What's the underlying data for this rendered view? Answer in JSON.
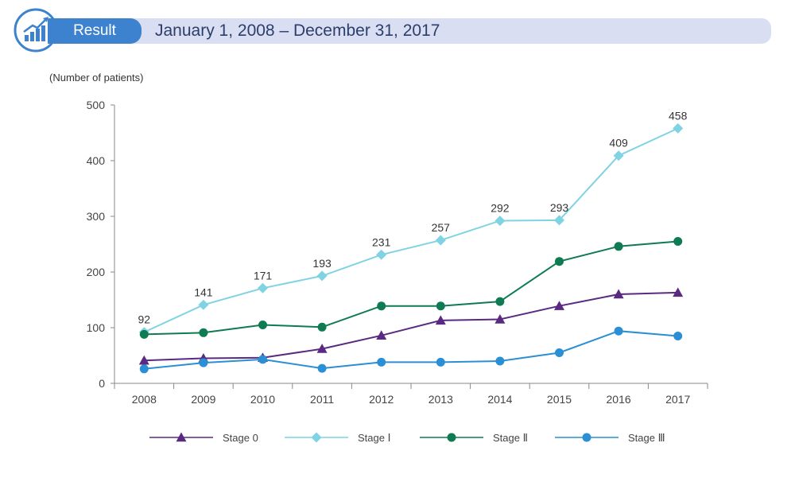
{
  "header": {
    "tab_label": "Result",
    "date_range": "January 1, 2008 – December 31, 2017",
    "icon": "chart-growth-icon"
  },
  "colors": {
    "stage0": "#5a2a82",
    "stage1": "#7fd3e3",
    "stage2": "#0f7b52",
    "stage3": "#2a8fd4",
    "header_tab": "#3c82ce",
    "header_bar": "#d9def2"
  },
  "chart_data": {
    "type": "line",
    "ylabel": "(Number of patients)",
    "xlabel": "",
    "ylim": [
      0,
      500
    ],
    "yticks": [
      0,
      100,
      200,
      300,
      400,
      500
    ],
    "categories": [
      "2008",
      "2009",
      "2010",
      "2011",
      "2012",
      "2013",
      "2014",
      "2015",
      "2016",
      "2017"
    ],
    "grid": false,
    "legend_position": "bottom",
    "series": [
      {
        "name": "Stage 0",
        "marker": "triangle",
        "color": "#5a2a82",
        "values": [
          41,
          45,
          46,
          62,
          86,
          113,
          115,
          139,
          160,
          163
        ],
        "labels": false
      },
      {
        "name": "Stage Ⅰ",
        "marker": "diamond",
        "color": "#7fd3e3",
        "values": [
          92,
          141,
          171,
          193,
          231,
          257,
          292,
          293,
          409,
          458
        ],
        "labels": true
      },
      {
        "name": "Stage Ⅱ",
        "marker": "circle",
        "color": "#0f7b52",
        "values": [
          88,
          91,
          105,
          101,
          139,
          139,
          147,
          219,
          246,
          255
        ],
        "labels": false
      },
      {
        "name": "Stage Ⅲ",
        "marker": "circle",
        "color": "#2a8fd4",
        "values": [
          26,
          37,
          43,
          27,
          38,
          38,
          40,
          55,
          94,
          85
        ],
        "labels": false
      }
    ]
  }
}
